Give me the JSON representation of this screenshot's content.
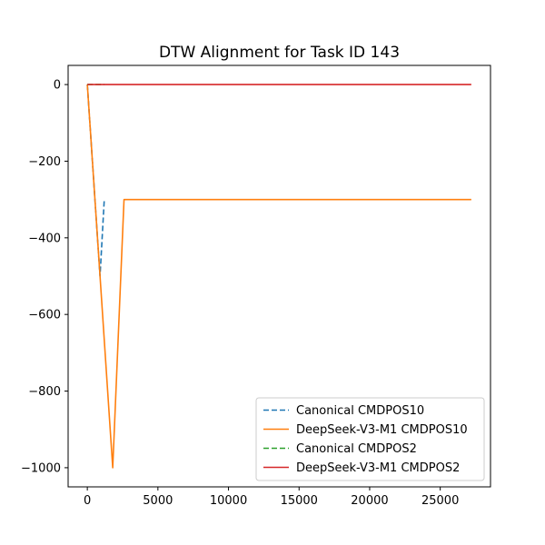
{
  "chart_data": {
    "type": "line",
    "title": "DTW Alignment for Task ID 143",
    "xlabel": "",
    "ylabel": "",
    "xlim": [
      -1360,
      28560
    ],
    "ylim": [
      -1050,
      50
    ],
    "xticks": [
      0,
      5000,
      10000,
      15000,
      20000,
      25000
    ],
    "yticks": [
      0,
      -200,
      -400,
      -600,
      -800,
      -1000
    ],
    "xtick_labels": [
      "0",
      "5000",
      "10000",
      "15000",
      "20000",
      "25000"
    ],
    "ytick_labels": [
      "0",
      "−200",
      "−400",
      "−600",
      "−800",
      "−1000"
    ],
    "grid": false,
    "legend_position": "bottom-right",
    "legend": [
      "Canonical CMDPOS10",
      "DeepSeek-V3-M1 CMDPOS10",
      "Canonical CMDPOS2",
      "DeepSeek-V3-M1 CMDPOS2"
    ],
    "series": [
      {
        "name": "Canonical CMDPOS10",
        "color": "#1f77b4",
        "dash": "dashed",
        "x": [
          0,
          900,
          1200
        ],
        "y": [
          0,
          -500,
          -300
        ]
      },
      {
        "name": "DeepSeek-V3-M1 CMDPOS10",
        "color": "#ff7f0e",
        "dash": "solid",
        "x": [
          0,
          1800,
          2600,
          27200
        ],
        "y": [
          0,
          -1000,
          -300,
          -300
        ]
      },
      {
        "name": "Canonical CMDPOS2",
        "color": "#2ca02c",
        "dash": "dashed",
        "x": [
          0,
          1200
        ],
        "y": [
          0,
          0
        ]
      },
      {
        "name": "DeepSeek-V3-M1 CMDPOS2",
        "color": "#d62728",
        "dash": "solid",
        "x": [
          0,
          27200
        ],
        "y": [
          0,
          0
        ]
      }
    ]
  }
}
